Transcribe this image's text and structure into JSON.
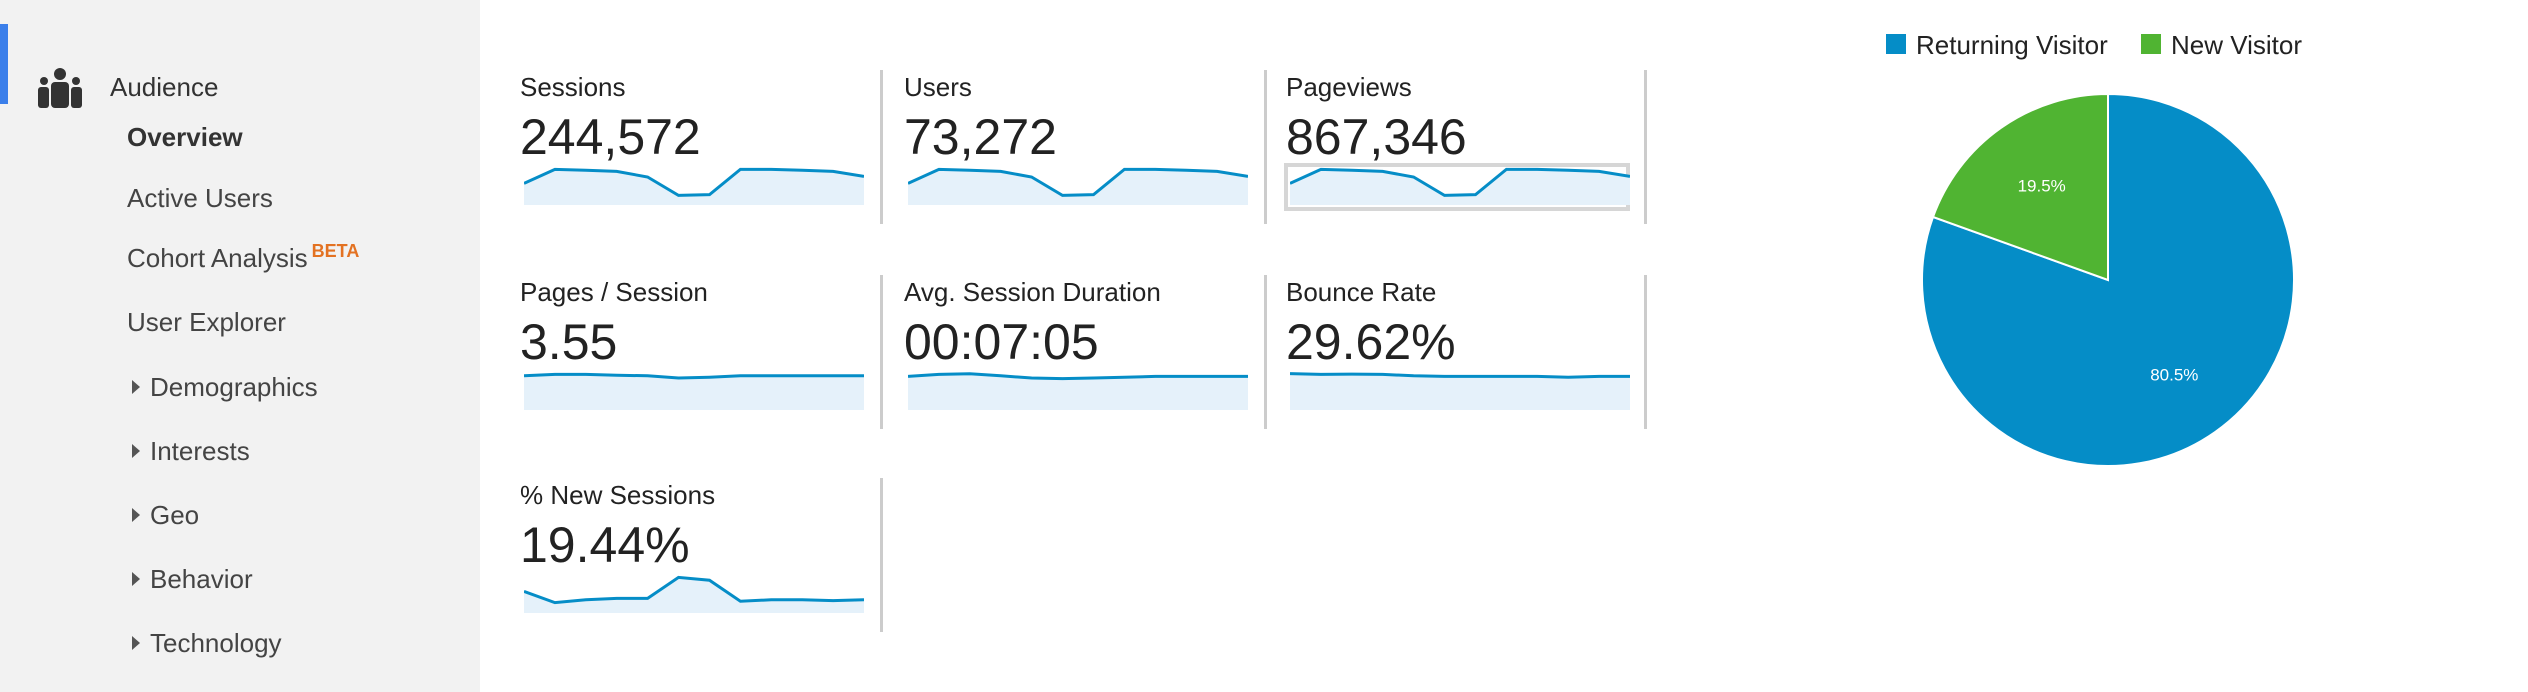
{
  "sidebar": {
    "section": {
      "label": "Audience",
      "icon": "audience-people-icon",
      "accent_color": "#3b7fea"
    },
    "items": [
      {
        "label": "Overview",
        "active": true
      },
      {
        "label": "Active Users"
      },
      {
        "label": "Cohort Analysis",
        "badge": "BETA",
        "badge_color": "#e37222"
      },
      {
        "label": "User Explorer"
      }
    ],
    "expandable": [
      {
        "label": "Demographics",
        "icon": "triangle-right-icon"
      },
      {
        "label": "Interests",
        "icon": "triangle-right-icon"
      },
      {
        "label": "Geo",
        "icon": "triangle-right-icon"
      },
      {
        "label": "Behavior",
        "icon": "triangle-right-icon"
      },
      {
        "label": "Technology",
        "icon": "triangle-right-icon"
      }
    ]
  },
  "metrics": [
    {
      "label": "Sessions",
      "value": "244,572",
      "selected": false,
      "spark": [
        0.55,
        0.05,
        0.08,
        0.12,
        0.32,
        0.98,
        0.95,
        0.05,
        0.05,
        0.08,
        0.12,
        0.3
      ]
    },
    {
      "label": "Users",
      "value": "73,272",
      "selected": false,
      "spark": [
        0.55,
        0.05,
        0.08,
        0.12,
        0.32,
        0.98,
        0.95,
        0.05,
        0.05,
        0.08,
        0.12,
        0.3
      ]
    },
    {
      "label": "Pageviews",
      "value": "867,346",
      "selected": true,
      "spark": [
        0.55,
        0.05,
        0.08,
        0.12,
        0.32,
        0.98,
        0.95,
        0.05,
        0.05,
        0.08,
        0.12,
        0.3
      ]
    },
    {
      "label": "Pages / Session",
      "value": "3.55",
      "selected": false,
      "spark": [
        0.1,
        0.05,
        0.05,
        0.08,
        0.1,
        0.18,
        0.15,
        0.1,
        0.1,
        0.1,
        0.1,
        0.1
      ]
    },
    {
      "label": "Avg. Session Duration",
      "value": "00:07:05",
      "selected": false,
      "spark": [
        0.12,
        0.05,
        0.03,
        0.1,
        0.18,
        0.2,
        0.18,
        0.15,
        0.12,
        0.12,
        0.12,
        0.12
      ]
    },
    {
      "label": "Bounce Rate",
      "value": "29.62%",
      "selected": false,
      "spark": [
        0.02,
        0.05,
        0.04,
        0.05,
        0.1,
        0.12,
        0.12,
        0.12,
        0.12,
        0.15,
        0.12,
        0.12
      ]
    },
    {
      "label": "% New Sessions",
      "value": "19.44%",
      "selected": false,
      "spark": [
        0.55,
        0.95,
        0.85,
        0.8,
        0.8,
        0.05,
        0.15,
        0.9,
        0.85,
        0.85,
        0.88,
        0.85
      ]
    }
  ],
  "sparkline_colors": {
    "line": "#058dc7",
    "fill": "#e5f1fa"
  },
  "chart_data": {
    "type": "pie",
    "title": "",
    "legend_position": "top",
    "categories": [
      "Returning Visitor",
      "New Visitor"
    ],
    "values": [
      80.5,
      19.5
    ],
    "labels": [
      "80.5%",
      "19.5%"
    ],
    "colors": [
      "#058dc7",
      "#50b432"
    ]
  },
  "legend": [
    {
      "label": "Returning Visitor",
      "color": "#058dc7"
    },
    {
      "label": "New Visitor",
      "color": "#50b432"
    }
  ]
}
